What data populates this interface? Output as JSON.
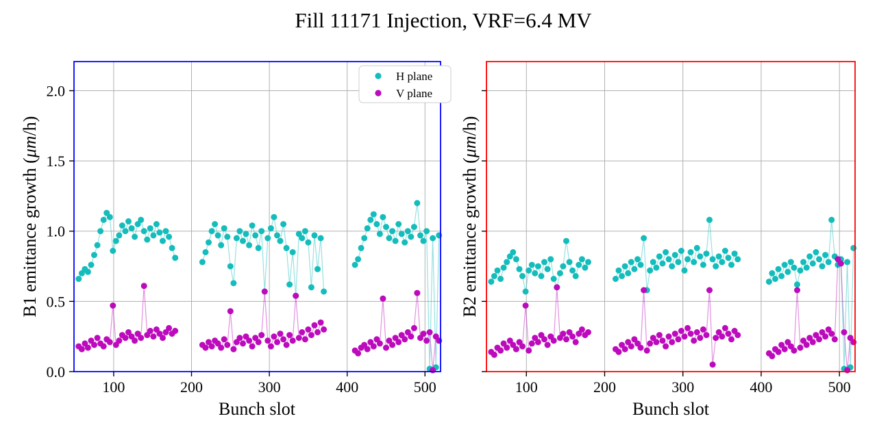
{
  "title": "Fill 11171 Injection, VRF=6.4 MV",
  "colors": {
    "h_plane": "#15bcbc",
    "v_plane": "#bc0abc",
    "b1_spine": "#0000ff",
    "b2_spine": "#ff0000",
    "grid": "#b0b0b0",
    "legend_border": "#cccccc"
  },
  "legend": {
    "items": [
      {
        "label": "H plane",
        "color": "#15bcbc"
      },
      {
        "label": "V plane",
        "color": "#bc0abc"
      }
    ]
  },
  "chart_data": [
    {
      "type": "scatter",
      "beam": "B1",
      "xlabel": "Bunch slot",
      "ylabel": "B1 emittance growth (μm/h)",
      "xlim": [
        49,
        520
      ],
      "ylim": [
        0,
        2.207
      ],
      "xticks": [
        100,
        200,
        300,
        400,
        500
      ],
      "xtick_labels": [
        "100",
        "200",
        "300",
        "400",
        "500"
      ],
      "ytick_values": [
        0.0,
        0.5,
        1.0,
        1.5,
        2.0
      ],
      "ytick_labels": [
        "0.0",
        "0.5",
        "1.0",
        "1.5",
        "2.0"
      ],
      "grid": true,
      "legend": true,
      "legend_position": "upper right",
      "spine_color": "#0000ff",
      "series": [
        {
          "name": "H plane",
          "color": "#15bcbc",
          "trains": [
            {
              "x0": 55,
              "dx": 4,
              "y": [
                0.66,
                0.7,
                0.73,
                0.71,
                0.76,
                0.83,
                0.9,
                1.0,
                1.08,
                1.13,
                1.1,
                0.86,
                0.93,
                0.97,
                1.04,
                1.0,
                1.07,
                1.02,
                0.96,
                1.05,
                1.08,
                1.0,
                0.94,
                1.02,
                0.97,
                1.05,
                0.99,
                0.93,
                1.0,
                0.96,
                0.88,
                0.81
              ]
            },
            {
              "x0": 214,
              "dx": 4,
              "y": [
                0.78,
                0.85,
                0.92,
                1.0,
                1.05,
                0.97,
                0.9,
                1.02,
                0.96,
                0.75,
                0.63,
                0.95,
                1.0,
                0.93,
                0.98,
                0.9,
                1.04,
                0.97,
                0.88,
                1.0,
                0.57,
                0.95,
                1.02,
                1.1,
                0.97,
                0.93,
                1.05,
                0.88,
                0.62,
                0.85,
                0.54,
                0.98,
                0.95,
                1.0,
                0.92,
                0.6,
                0.97,
                0.73,
                0.95,
                0.57
              ]
            },
            {
              "x0": 410,
              "dx": 4,
              "y": [
                0.76,
                0.8,
                0.88,
                0.95,
                1.02,
                1.08,
                1.12,
                1.05,
                0.98,
                1.1,
                1.03,
                0.95,
                1.0,
                0.93,
                1.05,
                0.98,
                0.92,
                1.0,
                0.96,
                1.03,
                1.2,
                0.97,
                0.93,
                1.0,
                0.02,
                0.95,
                0.03,
                0.97
              ]
            }
          ]
        },
        {
          "name": "V plane",
          "color": "#bc0abc",
          "trains": [
            {
              "x0": 55,
              "dx": 4,
              "y": [
                0.18,
                0.16,
                0.2,
                0.17,
                0.22,
                0.19,
                0.24,
                0.2,
                0.18,
                0.23,
                0.21,
                0.47,
                0.19,
                0.22,
                0.26,
                0.24,
                0.28,
                0.25,
                0.22,
                0.27,
                0.24,
                0.61,
                0.26,
                0.29,
                0.25,
                0.3,
                0.27,
                0.24,
                0.28,
                0.31,
                0.27,
                0.29
              ]
            },
            {
              "x0": 214,
              "dx": 4,
              "y": [
                0.19,
                0.17,
                0.21,
                0.18,
                0.22,
                0.2,
                0.17,
                0.23,
                0.19,
                0.43,
                0.16,
                0.21,
                0.24,
                0.2,
                0.25,
                0.22,
                0.18,
                0.24,
                0.21,
                0.26,
                0.57,
                0.22,
                0.18,
                0.25,
                0.21,
                0.27,
                0.23,
                0.19,
                0.26,
                0.22,
                0.54,
                0.24,
                0.28,
                0.23,
                0.3,
                0.26,
                0.33,
                0.28,
                0.35,
                0.3
              ]
            },
            {
              "x0": 410,
              "dx": 4,
              "y": [
                0.15,
                0.13,
                0.17,
                0.19,
                0.16,
                0.21,
                0.18,
                0.23,
                0.2,
                0.52,
                0.17,
                0.22,
                0.19,
                0.24,
                0.21,
                0.26,
                0.23,
                0.28,
                0.25,
                0.31,
                0.56,
                0.24,
                0.27,
                0.22,
                0.28,
                0.01,
                0.25,
                0.22
              ]
            }
          ]
        }
      ]
    },
    {
      "type": "scatter",
      "beam": "B2",
      "xlabel": "Bunch slot",
      "ylabel": "B2 emittance growth (μm/h)",
      "xlim": [
        49,
        520
      ],
      "ylim": [
        0,
        2.207
      ],
      "xticks": [
        100,
        200,
        300,
        400,
        500
      ],
      "xtick_labels": [
        "100",
        "200",
        "300",
        "400",
        "500"
      ],
      "ytick_values": [
        0.0,
        0.5,
        1.0,
        1.5,
        2.0
      ],
      "ytick_labels": [],
      "grid": true,
      "legend": false,
      "spine_color": "#ff0000",
      "series": [
        {
          "name": "H plane",
          "color": "#15bcbc",
          "trains": [
            {
              "x0": 55,
              "dx": 4,
              "y": [
                0.64,
                0.68,
                0.72,
                0.66,
                0.74,
                0.78,
                0.82,
                0.85,
                0.8,
                0.73,
                0.68,
                0.57,
                0.72,
                0.76,
                0.7,
                0.75,
                0.68,
                0.78,
                0.73,
                0.8,
                0.66,
                0.6,
                0.7,
                0.75,
                0.93,
                0.78,
                0.72,
                0.68,
                0.76,
                0.8,
                0.74,
                0.78
              ]
            },
            {
              "x0": 214,
              "dx": 4,
              "y": [
                0.66,
                0.72,
                0.68,
                0.75,
                0.7,
                0.78,
                0.73,
                0.8,
                0.76,
                0.95,
                0.58,
                0.72,
                0.78,
                0.74,
                0.82,
                0.77,
                0.85,
                0.8,
                0.75,
                0.83,
                0.78,
                0.86,
                0.72,
                0.8,
                0.85,
                0.78,
                0.88,
                0.82,
                0.76,
                0.84,
                1.08,
                0.8,
                0.75,
                0.82,
                0.78,
                0.86,
                0.81,
                0.76,
                0.84,
                0.8
              ]
            },
            {
              "x0": 410,
              "dx": 4,
              "y": [
                0.64,
                0.7,
                0.66,
                0.73,
                0.68,
                0.76,
                0.71,
                0.78,
                0.74,
                0.62,
                0.72,
                0.78,
                0.74,
                0.82,
                0.77,
                0.85,
                0.8,
                0.75,
                0.83,
                0.78,
                1.08,
                0.82,
                0.76,
                0.8,
                0.02,
                0.78,
                0.03,
                0.88
              ]
            }
          ]
        },
        {
          "name": "V plane",
          "color": "#bc0abc",
          "trains": [
            {
              "x0": 55,
              "dx": 4,
              "y": [
                0.14,
                0.12,
                0.17,
                0.15,
                0.2,
                0.17,
                0.22,
                0.19,
                0.16,
                0.21,
                0.18,
                0.47,
                0.15,
                0.2,
                0.24,
                0.21,
                0.26,
                0.23,
                0.19,
                0.25,
                0.22,
                0.6,
                0.24,
                0.27,
                0.23,
                0.28,
                0.25,
                0.21,
                0.27,
                0.3,
                0.26,
                0.28
              ]
            },
            {
              "x0": 214,
              "dx": 4,
              "y": [
                0.16,
                0.14,
                0.19,
                0.16,
                0.21,
                0.18,
                0.23,
                0.2,
                0.17,
                0.58,
                0.15,
                0.2,
                0.24,
                0.21,
                0.26,
                0.22,
                0.18,
                0.25,
                0.21,
                0.27,
                0.23,
                0.29,
                0.25,
                0.31,
                0.27,
                0.22,
                0.28,
                0.24,
                0.3,
                0.26,
                0.58,
                0.05,
                0.24,
                0.28,
                0.25,
                0.31,
                0.27,
                0.23,
                0.29,
                0.26
              ]
            },
            {
              "x0": 410,
              "dx": 4,
              "y": [
                0.13,
                0.11,
                0.16,
                0.14,
                0.19,
                0.16,
                0.21,
                0.18,
                0.15,
                0.58,
                0.17,
                0.22,
                0.19,
                0.24,
                0.21,
                0.26,
                0.23,
                0.28,
                0.25,
                0.3,
                0.27,
                0.23,
                0.8,
                0.77,
                0.28,
                0.01,
                0.24,
                0.21
              ]
            }
          ]
        }
      ]
    }
  ]
}
